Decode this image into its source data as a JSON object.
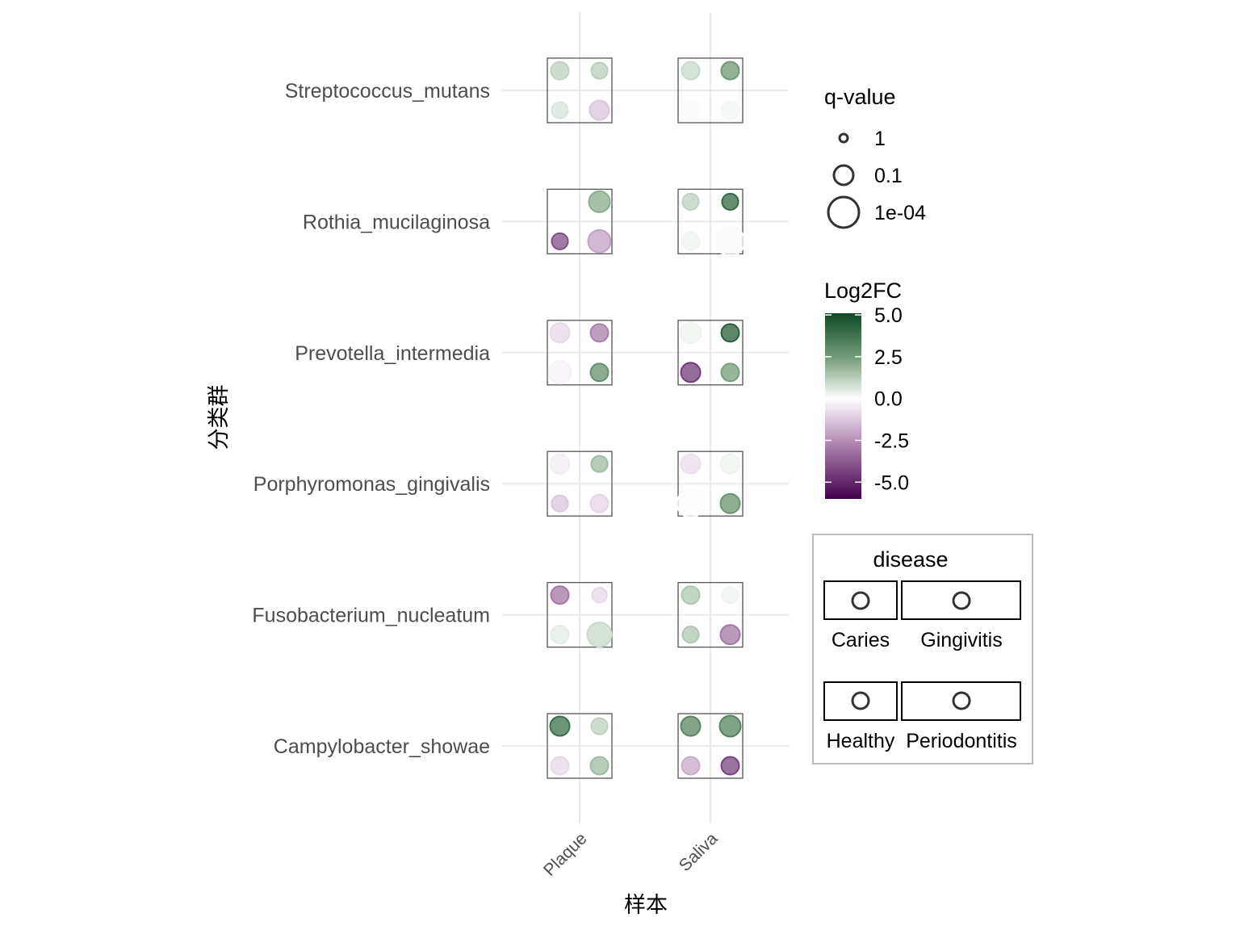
{
  "chart_data": {
    "type": "scatter",
    "title": "",
    "xlabel": "样本",
    "ylabel": "分类群",
    "x_categories": [
      "Plaque",
      "Saliva"
    ],
    "y_categories": [
      "Streptococcus_mutans",
      "Rothia_mucilaginosa",
      "Prevotella_intermedia",
      "Porphyromonas_gingivalis",
      "Fusobacterium_nucleatum",
      "Campylobacter_showae"
    ],
    "disease_levels": [
      "Caries",
      "Gingivitis",
      "Healthy",
      "Periodontitis"
    ],
    "color_legend": {
      "title": "Log2FC",
      "ticks": [
        "5.0",
        "2.5",
        "0.0",
        "-2.5",
        "-5.0"
      ],
      "tick_values": [
        5,
        2.5,
        0,
        -2.5,
        -5
      ],
      "limits": [
        -6,
        5.1
      ],
      "colors": {
        "high": "#0f4a24",
        "mid_high": "#7aa17f",
        "mid": "#ffffff",
        "mid_low": "#b48bb5",
        "low": "#40004b"
      }
    },
    "size_legend": {
      "title": "q-value",
      "labels": [
        "1",
        "0.1",
        "1e-04"
      ],
      "values": [
        1,
        0.1,
        0.0001
      ]
    },
    "disease_legend": {
      "title": "disease",
      "labels": [
        "Caries",
        "Gingivitis",
        "Healthy",
        "Periodontitis"
      ]
    },
    "points": [
      {
        "taxon": "Streptococcus_mutans",
        "sample": "Plaque",
        "disease": "Caries",
        "log2fc": 1.2,
        "q": 0.14
      },
      {
        "taxon": "Streptococcus_mutans",
        "sample": "Plaque",
        "disease": "Gingivitis",
        "log2fc": 1.3,
        "q": 0.19
      },
      {
        "taxon": "Streptococcus_mutans",
        "sample": "Plaque",
        "disease": "Healthy",
        "log2fc": 0.7,
        "q": 0.19
      },
      {
        "taxon": "Streptococcus_mutans",
        "sample": "Plaque",
        "disease": "Periodontitis",
        "log2fc": -1.2,
        "q": 0.1
      },
      {
        "taxon": "Streptococcus_mutans",
        "sample": "Saliva",
        "disease": "Caries",
        "log2fc": 1.0,
        "q": 0.14
      },
      {
        "taxon": "Streptococcus_mutans",
        "sample": "Saliva",
        "disease": "Gingivitis",
        "log2fc": 2.8,
        "q": 0.14
      },
      {
        "taxon": "Streptococcus_mutans",
        "sample": "Saliva",
        "disease": "Healthy",
        "log2fc": 0.1,
        "q": 0.19
      },
      {
        "taxon": "Streptococcus_mutans",
        "sample": "Saliva",
        "disease": "Periodontitis",
        "log2fc": 0.2,
        "q": 0.14
      },
      {
        "taxon": "Rothia_mucilaginosa",
        "sample": "Plaque",
        "disease": "Caries",
        "log2fc": 0.0,
        "q": 0.5
      },
      {
        "taxon": "Rothia_mucilaginosa",
        "sample": "Plaque",
        "disease": "Gingivitis",
        "log2fc": 2.2,
        "q": 0.037
      },
      {
        "taxon": "Rothia_mucilaginosa",
        "sample": "Plaque",
        "disease": "Healthy",
        "log2fc": -4.0,
        "q": 0.19
      },
      {
        "taxon": "Rothia_mucilaginosa",
        "sample": "Plaque",
        "disease": "Periodontitis",
        "log2fc": -2.0,
        "q": 0.014
      },
      {
        "taxon": "Rothia_mucilaginosa",
        "sample": "Saliva",
        "disease": "Caries",
        "log2fc": 1.2,
        "q": 0.19
      },
      {
        "taxon": "Rothia_mucilaginosa",
        "sample": "Saliva",
        "disease": "Gingivitis",
        "log2fc": 4.2,
        "q": 0.19
      },
      {
        "taxon": "Rothia_mucilaginosa",
        "sample": "Saliva",
        "disease": "Healthy",
        "log2fc": 0.3,
        "q": 0.14
      },
      {
        "taxon": "Rothia_mucilaginosa",
        "sample": "Saliva",
        "disease": "Periodontitis",
        "log2fc": 0.1,
        "q": 0.00027
      },
      {
        "taxon": "Prevotella_intermedia",
        "sample": "Plaque",
        "disease": "Caries",
        "log2fc": -0.8,
        "q": 0.1
      },
      {
        "taxon": "Prevotella_intermedia",
        "sample": "Plaque",
        "disease": "Gingivitis",
        "log2fc": -2.8,
        "q": 0.14
      },
      {
        "taxon": "Prevotella_intermedia",
        "sample": "Plaque",
        "disease": "Healthy",
        "log2fc": -0.3,
        "q": 0.014
      },
      {
        "taxon": "Prevotella_intermedia",
        "sample": "Plaque",
        "disease": "Periodontitis",
        "log2fc": 3.0,
        "q": 0.14
      },
      {
        "taxon": "Prevotella_intermedia",
        "sample": "Saliva",
        "disease": "Caries",
        "log2fc": 0.3,
        "q": 0.037
      },
      {
        "taxon": "Prevotella_intermedia",
        "sample": "Saliva",
        "disease": "Gingivitis",
        "log2fc": 4.5,
        "q": 0.14
      },
      {
        "taxon": "Prevotella_intermedia",
        "sample": "Saliva",
        "disease": "Healthy",
        "log2fc": -4.5,
        "q": 0.1
      },
      {
        "taxon": "Prevotella_intermedia",
        "sample": "Saliva",
        "disease": "Periodontitis",
        "log2fc": 2.6,
        "q": 0.14
      },
      {
        "taxon": "Porphyromonas_gingivalis",
        "sample": "Plaque",
        "disease": "Caries",
        "log2fc": -0.4,
        "q": 0.1
      },
      {
        "taxon": "Porphyromonas_gingivalis",
        "sample": "Plaque",
        "disease": "Gingivitis",
        "log2fc": 1.8,
        "q": 0.19
      },
      {
        "taxon": "Porphyromonas_gingivalis",
        "sample": "Plaque",
        "disease": "Healthy",
        "log2fc": -1.2,
        "q": 0.19
      },
      {
        "taxon": "Porphyromonas_gingivalis",
        "sample": "Plaque",
        "disease": "Periodontitis",
        "log2fc": -0.9,
        "q": 0.14
      },
      {
        "taxon": "Porphyromonas_gingivalis",
        "sample": "Saliva",
        "disease": "Caries",
        "log2fc": -0.7,
        "q": 0.1
      },
      {
        "taxon": "Porphyromonas_gingivalis",
        "sample": "Saliva",
        "disease": "Gingivitis",
        "log2fc": 0.3,
        "q": 0.1
      },
      {
        "taxon": "Porphyromonas_gingivalis",
        "sample": "Saliva",
        "disease": "Healthy",
        "log2fc": 0.05,
        "q": 0.0007
      },
      {
        "taxon": "Porphyromonas_gingivalis",
        "sample": "Saliva",
        "disease": "Periodontitis",
        "log2fc": 2.9,
        "q": 0.1
      },
      {
        "taxon": "Fusobacterium_nucleatum",
        "sample": "Plaque",
        "disease": "Caries",
        "log2fc": -3.0,
        "q": 0.14
      },
      {
        "taxon": "Fusobacterium_nucleatum",
        "sample": "Plaque",
        "disease": "Gingivitis",
        "log2fc": -0.8,
        "q": 0.25
      },
      {
        "taxon": "Fusobacterium_nucleatum",
        "sample": "Plaque",
        "disease": "Healthy",
        "log2fc": 0.5,
        "q": 0.14
      },
      {
        "taxon": "Fusobacterium_nucleatum",
        "sample": "Plaque",
        "disease": "Periodontitis",
        "log2fc": 1.0,
        "q": 0.005
      },
      {
        "taxon": "Fusobacterium_nucleatum",
        "sample": "Saliva",
        "disease": "Caries",
        "log2fc": 1.5,
        "q": 0.14
      },
      {
        "taxon": "Fusobacterium_nucleatum",
        "sample": "Saliva",
        "disease": "Gingivitis",
        "log2fc": 0.3,
        "q": 0.19
      },
      {
        "taxon": "Fusobacterium_nucleatum",
        "sample": "Saliva",
        "disease": "Healthy",
        "log2fc": 1.5,
        "q": 0.19
      },
      {
        "taxon": "Fusobacterium_nucleatum",
        "sample": "Saliva",
        "disease": "Periodontitis",
        "log2fc": -3.0,
        "q": 0.1
      },
      {
        "taxon": "Campylobacter_showae",
        "sample": "Plaque",
        "disease": "Caries",
        "log2fc": 4.0,
        "q": 0.1
      },
      {
        "taxon": "Campylobacter_showae",
        "sample": "Plaque",
        "disease": "Gingivitis",
        "log2fc": 1.2,
        "q": 0.19
      },
      {
        "taxon": "Campylobacter_showae",
        "sample": "Plaque",
        "disease": "Healthy",
        "log2fc": -0.8,
        "q": 0.14
      },
      {
        "taxon": "Campylobacter_showae",
        "sample": "Plaque",
        "disease": "Periodontitis",
        "log2fc": 1.8,
        "q": 0.14
      },
      {
        "taxon": "Campylobacter_showae",
        "sample": "Saliva",
        "disease": "Caries",
        "log2fc": 3.3,
        "q": 0.1
      },
      {
        "taxon": "Campylobacter_showae",
        "sample": "Saliva",
        "disease": "Gingivitis",
        "log2fc": 3.4,
        "q": 0.037
      },
      {
        "taxon": "Campylobacter_showae",
        "sample": "Saliva",
        "disease": "Healthy",
        "log2fc": -1.8,
        "q": 0.14
      },
      {
        "taxon": "Campylobacter_showae",
        "sample": "Saliva",
        "disease": "Periodontitis",
        "log2fc": -4.3,
        "q": 0.14
      }
    ]
  }
}
